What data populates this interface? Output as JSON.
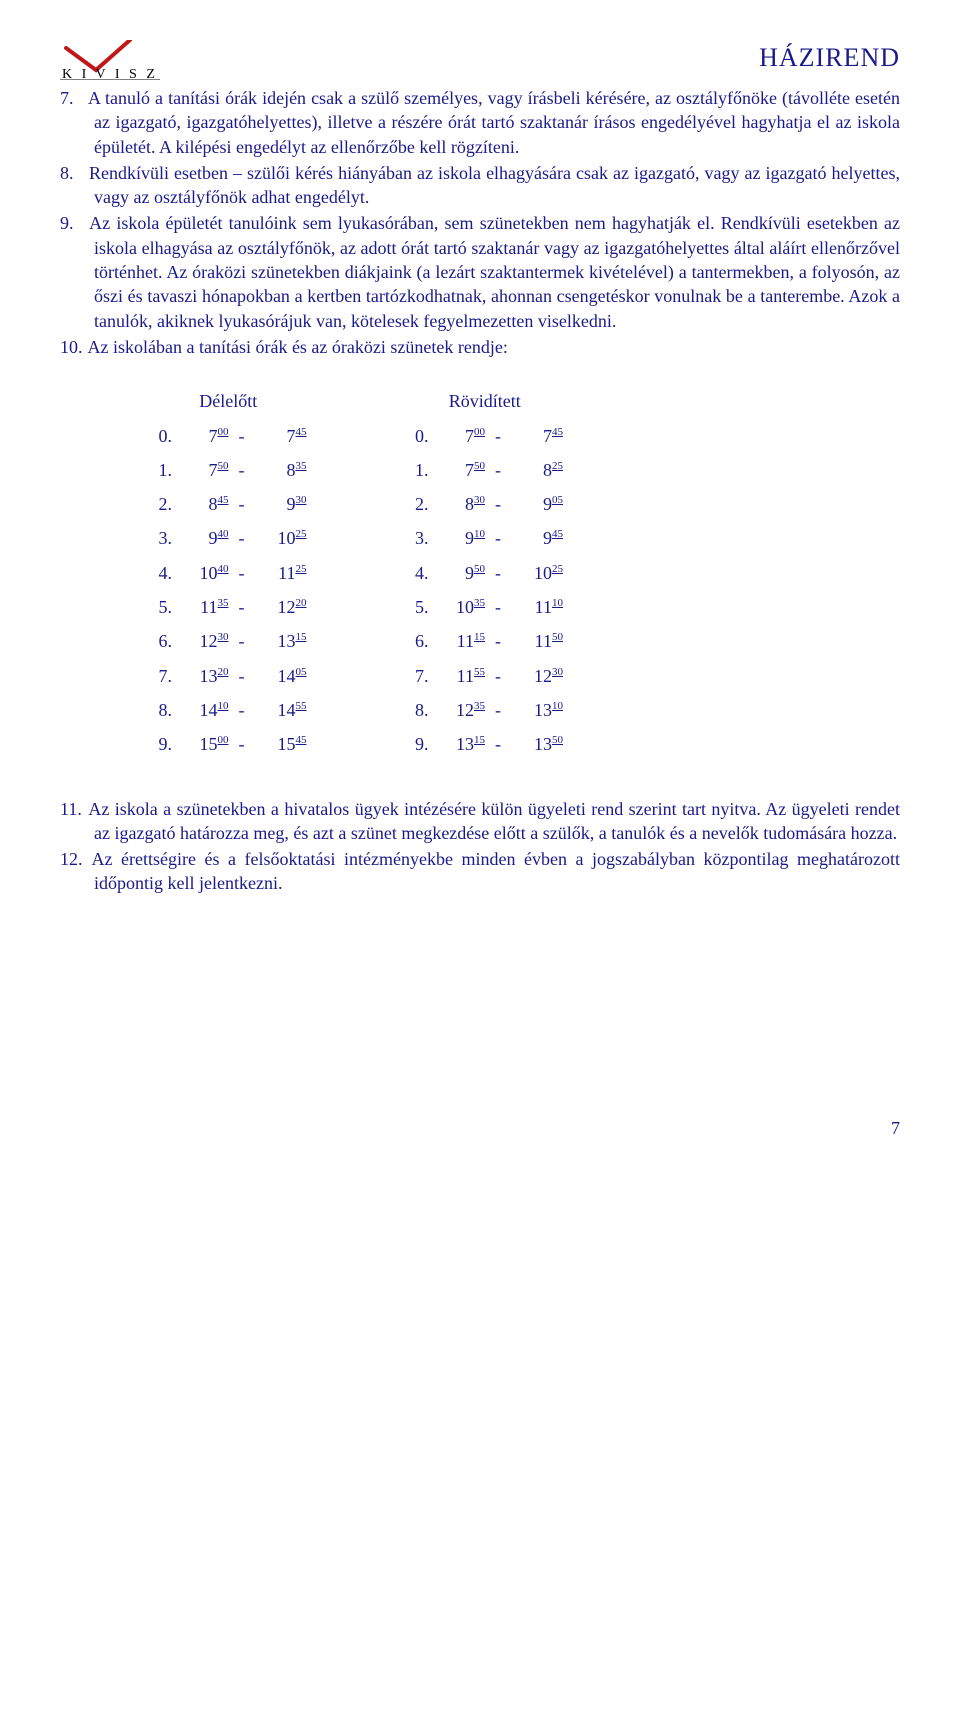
{
  "header": {
    "logo_text": "K I V I S Z",
    "doc_title": "HÁZIREND"
  },
  "colors": {
    "text": "#1a1a8a",
    "logo_red": "#c01818",
    "background": "#ffffff"
  },
  "typography": {
    "body_fontsize_pt": 14,
    "title_fontsize_pt": 20,
    "font_family": "Times New Roman"
  },
  "list": [
    {
      "n": "7.",
      "text": "A tanuló a tanítási órák idején csak a szülő személyes, vagy írásbeli kérésére, az osztályfőnöke (távolléte esetén az igazgató, igazgatóhelyettes), illetve a részére órát tartó szaktanár írásos engedélyével hagyhatja el az iskola épületét. A kilépési engedélyt az ellenőrzőbe kell rögzíteni."
    },
    {
      "n": "8.",
      "text": "Rendkívüli esetben – szülői kérés hiányában az iskola elhagyására csak az igazgató, vagy az igazgató helyettes, vagy az osztályfőnök adhat engedélyt."
    },
    {
      "n": "9.",
      "text": "Az iskola épületét tanulóink sem lyukasórában, sem szünetekben nem hagyhatják el. Rendkívüli esetekben az iskola elhagyása az osztályfőnök, az adott órát tartó szaktanár vagy az igazgatóhelyettes által aláírt ellenőrzővel történhet. Az óraközi szünetekben diákjaink (a lezárt szaktantermek kivételével) a tantermekben, a folyosón, az őszi és tavaszi hónapokban a kertben tartózkodhatnak, ahonnan csengetéskor vonulnak be a tanterembe. Azok a tanulók, akiknek lyukasórájuk van, kötelesek fegyelmezetten viselkedni."
    },
    {
      "n": "10.",
      "text": "Az iskolában a tanítási órák és az óraközi szünetek rendje:"
    }
  ],
  "timetables": {
    "left": {
      "title": "Délelőtt",
      "rows": [
        {
          "i": "0.",
          "from_h": "7",
          "from_m": "00",
          "to_h": "7",
          "to_m": "45"
        },
        {
          "i": "1.",
          "from_h": "7",
          "from_m": "50",
          "to_h": "8",
          "to_m": "35"
        },
        {
          "i": "2.",
          "from_h": "8",
          "from_m": "45",
          "to_h": "9",
          "to_m": "30"
        },
        {
          "i": "3.",
          "from_h": "9",
          "from_m": "40",
          "to_h": "10",
          "to_m": "25"
        },
        {
          "i": "4.",
          "from_h": "10",
          "from_m": "40",
          "to_h": "11",
          "to_m": "25"
        },
        {
          "i": "5.",
          "from_h": "11",
          "from_m": "35",
          "to_h": "12",
          "to_m": "20"
        },
        {
          "i": "6.",
          "from_h": "12",
          "from_m": "30",
          "to_h": "13",
          "to_m": "15"
        },
        {
          "i": "7.",
          "from_h": "13",
          "from_m": "20",
          "to_h": "14",
          "to_m": "05"
        },
        {
          "i": "8.",
          "from_h": "14",
          "from_m": "10",
          "to_h": "14",
          "to_m": "55"
        },
        {
          "i": "9.",
          "from_h": "15",
          "from_m": "00",
          "to_h": "15",
          "to_m": "45"
        }
      ]
    },
    "right": {
      "title": "Rövidített",
      "rows": [
        {
          "i": "0.",
          "from_h": "7",
          "from_m": "00",
          "to_h": "7",
          "to_m": "45"
        },
        {
          "i": "1.",
          "from_h": "7",
          "from_m": "50",
          "to_h": "8",
          "to_m": "25"
        },
        {
          "i": "2.",
          "from_h": "8",
          "from_m": "30",
          "to_h": "9",
          "to_m": "05"
        },
        {
          "i": "3.",
          "from_h": "9",
          "from_m": "10",
          "to_h": "9",
          "to_m": "45"
        },
        {
          "i": "4.",
          "from_h": "9",
          "from_m": "50",
          "to_h": "10",
          "to_m": "25"
        },
        {
          "i": "5.",
          "from_h": "10",
          "from_m": "35",
          "to_h": "11",
          "to_m": "10"
        },
        {
          "i": "6.",
          "from_h": "11",
          "from_m": "15",
          "to_h": "11",
          "to_m": "50"
        },
        {
          "i": "7.",
          "from_h": "11",
          "from_m": "55",
          "to_h": "12",
          "to_m": "30"
        },
        {
          "i": "8.",
          "from_h": "12",
          "from_m": "35",
          "to_h": "13",
          "to_m": "10"
        },
        {
          "i": "9.",
          "from_h": "13",
          "from_m": "15",
          "to_h": "13",
          "to_m": "50"
        }
      ]
    }
  },
  "list2": [
    {
      "n": "11.",
      "text": "Az iskola a szünetekben a hivatalos ügyek intézésére külön ügyeleti rend szerint tart nyitva. Az ügyeleti rendet az igazgató határozza meg, és azt a szünet megkezdése előtt a szülők, a tanulók és a nevelők tudomására hozza."
    },
    {
      "n": "12.",
      "text": "Az érettségire és a felsőoktatási intézményekbe minden évben a jogszabályban központilag meghatározott időpontig kell jelentkezni."
    }
  ],
  "page_number": "7"
}
